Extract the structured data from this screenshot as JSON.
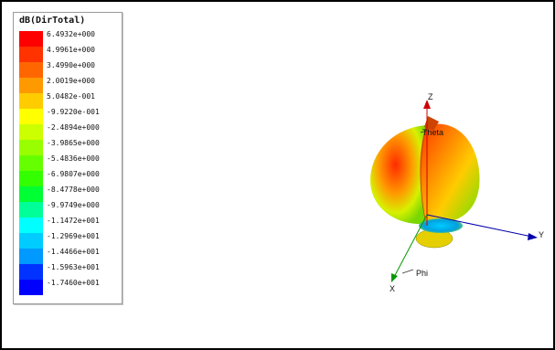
{
  "legend": {
    "title": "dB(DirTotal)",
    "ticks": [
      "6.4932e+000",
      "4.9961e+000",
      "3.4990e+000",
      "2.0019e+000",
      "5.0482e-001",
      "-9.9220e-001",
      "-2.4894e+000",
      "-3.9865e+000",
      "-5.4836e+000",
      "-6.9807e+000",
      "-8.4778e+000",
      "-9.9749e+000",
      "-1.1472e+001",
      "-1.2969e+001",
      "-1.4466e+001",
      "-1.5963e+001",
      "-1.7460e+001"
    ],
    "colors": [
      "#ff0000",
      "#ff3300",
      "#ff6600",
      "#ff9900",
      "#ffcc00",
      "#ffff00",
      "#ccff00",
      "#99ff00",
      "#66ff00",
      "#33ff00",
      "#00ff33",
      "#00ff99",
      "#00ffff",
      "#00ccff",
      "#0099ff",
      "#0033ff",
      "#0000ff"
    ]
  },
  "axes": {
    "z_label": "Z",
    "y_label": "Y",
    "x_label": "X",
    "theta_label": "Theta",
    "phi_label": "Phi"
  }
}
